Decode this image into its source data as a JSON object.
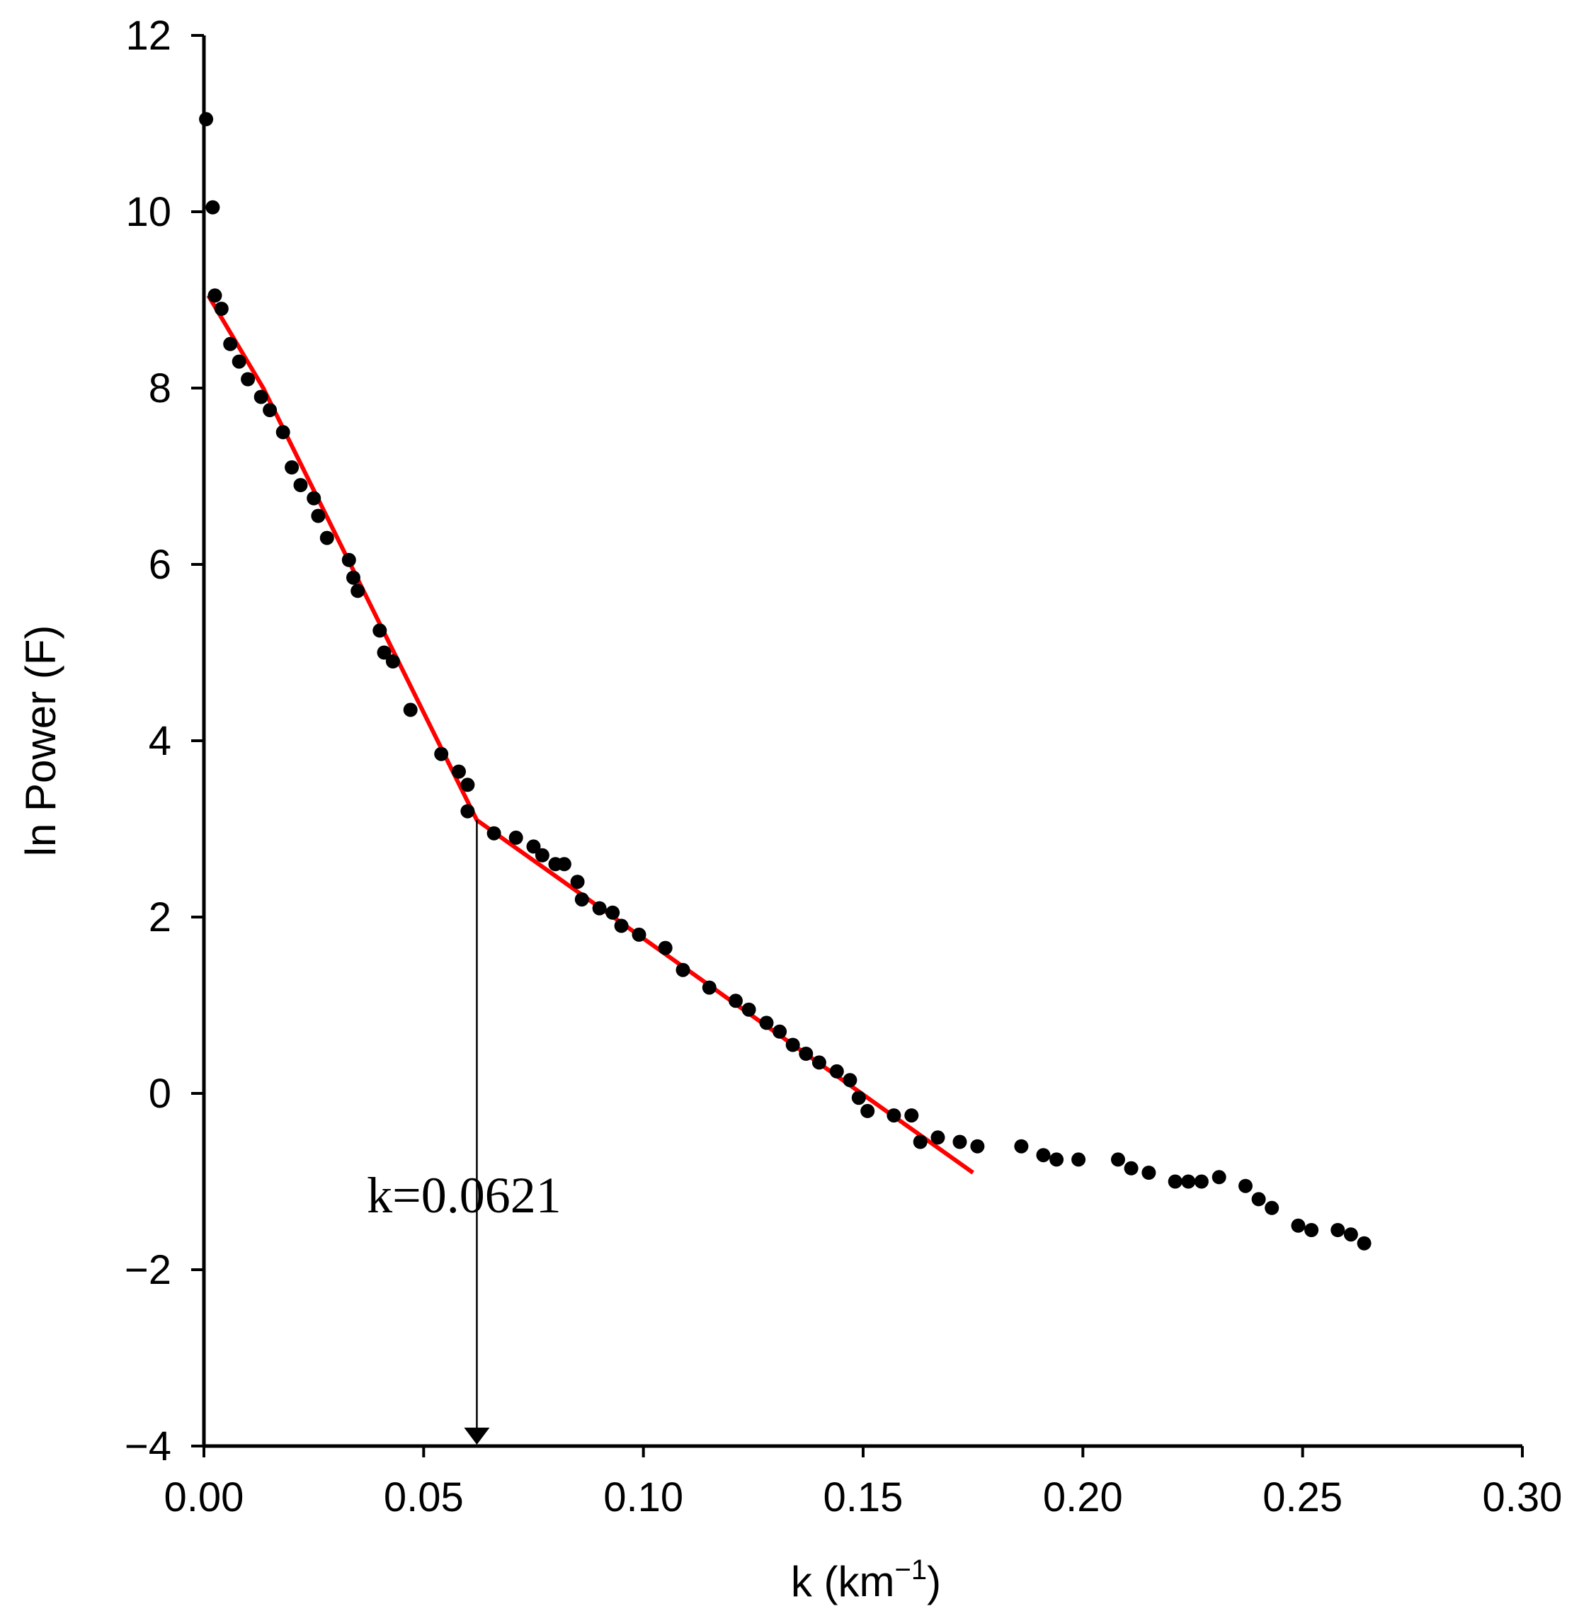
{
  "chart_data": {
    "type": "scatter",
    "xlabel": "k (km",
    "xlabel_superscript": "−1",
    "xlabel_suffix": ")",
    "ylabel": "ln Power (F)",
    "xlim": [
      0.0,
      0.3
    ],
    "ylim": [
      -4,
      12
    ],
    "x_ticks": [
      "0.00",
      "0.05",
      "0.10",
      "0.15",
      "0.20",
      "0.25",
      "0.30"
    ],
    "y_ticks": [
      "12",
      "10",
      "8",
      "6",
      "4",
      "2",
      "0",
      "−2",
      "−4"
    ],
    "grid": false,
    "legend": "none",
    "colors": {
      "points": "#000000",
      "fit_line": "#ff0000",
      "axes": "#000000"
    },
    "points": [
      [
        0.0005,
        11.05
      ],
      [
        0.002,
        10.05
      ],
      [
        0.0025,
        9.05
      ],
      [
        0.004,
        8.9
      ],
      [
        0.006,
        8.5
      ],
      [
        0.008,
        8.3
      ],
      [
        0.01,
        8.1
      ],
      [
        0.013,
        7.9
      ],
      [
        0.015,
        7.75
      ],
      [
        0.018,
        7.5
      ],
      [
        0.02,
        7.1
      ],
      [
        0.022,
        6.9
      ],
      [
        0.025,
        6.75
      ],
      [
        0.026,
        6.55
      ],
      [
        0.028,
        6.3
      ],
      [
        0.033,
        6.05
      ],
      [
        0.034,
        5.85
      ],
      [
        0.035,
        5.7
      ],
      [
        0.04,
        5.25
      ],
      [
        0.041,
        5.0
      ],
      [
        0.043,
        4.9
      ],
      [
        0.047,
        4.35
      ],
      [
        0.054,
        3.85
      ],
      [
        0.058,
        3.65
      ],
      [
        0.06,
        3.5
      ],
      [
        0.06,
        3.2
      ],
      [
        0.066,
        2.95
      ],
      [
        0.071,
        2.9
      ],
      [
        0.075,
        2.8
      ],
      [
        0.077,
        2.7
      ],
      [
        0.08,
        2.6
      ],
      [
        0.082,
        2.6
      ],
      [
        0.085,
        2.4
      ],
      [
        0.086,
        2.2
      ],
      [
        0.09,
        2.1
      ],
      [
        0.093,
        2.05
      ],
      [
        0.095,
        1.9
      ],
      [
        0.099,
        1.8
      ],
      [
        0.105,
        1.65
      ],
      [
        0.109,
        1.4
      ],
      [
        0.115,
        1.2
      ],
      [
        0.121,
        1.05
      ],
      [
        0.124,
        0.95
      ],
      [
        0.128,
        0.8
      ],
      [
        0.131,
        0.7
      ],
      [
        0.134,
        0.55
      ],
      [
        0.137,
        0.45
      ],
      [
        0.14,
        0.35
      ],
      [
        0.144,
        0.25
      ],
      [
        0.147,
        0.15
      ],
      [
        0.149,
        -0.05
      ],
      [
        0.151,
        -0.2
      ],
      [
        0.157,
        -0.25
      ],
      [
        0.161,
        -0.25
      ],
      [
        0.163,
        -0.55
      ],
      [
        0.167,
        -0.5
      ],
      [
        0.172,
        -0.55
      ],
      [
        0.176,
        -0.6
      ],
      [
        0.186,
        -0.6
      ],
      [
        0.191,
        -0.7
      ],
      [
        0.194,
        -0.75
      ],
      [
        0.199,
        -0.75
      ],
      [
        0.208,
        -0.75
      ],
      [
        0.211,
        -0.85
      ],
      [
        0.215,
        -0.9
      ],
      [
        0.221,
        -1.0
      ],
      [
        0.224,
        -1.0
      ],
      [
        0.227,
        -1.0
      ],
      [
        0.231,
        -0.95
      ],
      [
        0.237,
        -1.05
      ],
      [
        0.24,
        -1.2
      ],
      [
        0.243,
        -1.3
      ],
      [
        0.249,
        -1.5
      ],
      [
        0.252,
        -1.55
      ],
      [
        0.258,
        -1.55
      ],
      [
        0.261,
        -1.6
      ],
      [
        0.264,
        -1.7
      ]
    ],
    "fit_line": [
      [
        0.001,
        9.05
      ],
      [
        0.0135,
        8.0
      ],
      [
        0.0621,
        3.1
      ],
      [
        0.175,
        -0.9
      ]
    ],
    "annotation": {
      "text": "k=0.0621",
      "x": 0.0621
    }
  }
}
